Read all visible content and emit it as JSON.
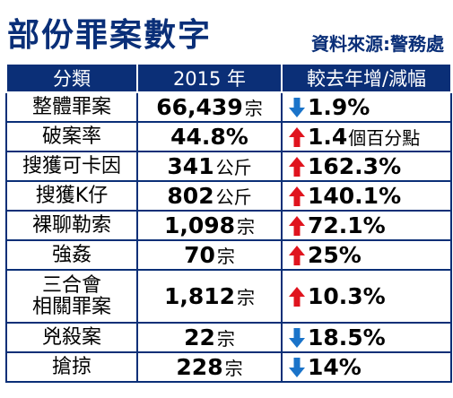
{
  "header": {
    "title": "部份罪案數字",
    "source": "資料來源:警務處"
  },
  "table": {
    "headers": [
      "分類",
      "2015 年",
      "較去年增/減幅"
    ],
    "colors": {
      "up": "#e0141e",
      "down": "#1a73c9",
      "header_bg": "#0b2f77"
    },
    "rows": [
      {
        "category": [
          "整體罪案"
        ],
        "value": "66,439",
        "unit": "宗",
        "direction": "down",
        "change": "1.9%",
        "note": ""
      },
      {
        "category": [
          "破案率"
        ],
        "value": "44.8%",
        "unit": "",
        "direction": "up",
        "change": "1.4",
        "note": "個百分點"
      },
      {
        "category": [
          "搜獲可卡因"
        ],
        "value": "341",
        "unit": "公斤",
        "direction": "up",
        "change": "162.3%",
        "note": ""
      },
      {
        "category": [
          "搜獲K仔"
        ],
        "value": "802",
        "unit": "公斤",
        "direction": "up",
        "change": "140.1%",
        "note": ""
      },
      {
        "category": [
          "裸聊勒索"
        ],
        "value": "1,098",
        "unit": "宗",
        "direction": "up",
        "change": "72.1%",
        "note": ""
      },
      {
        "category": [
          "強姦"
        ],
        "value": "70",
        "unit": "宗",
        "direction": "up",
        "change": "25%",
        "note": ""
      },
      {
        "category": [
          "三合會",
          "相關罪案"
        ],
        "value": "1,812",
        "unit": "宗",
        "direction": "up",
        "change": "10.3%",
        "note": ""
      },
      {
        "category": [
          "兇殺案"
        ],
        "value": "22",
        "unit": "宗",
        "direction": "down",
        "change": "18.5%",
        "note": ""
      },
      {
        "category": [
          "搶掠"
        ],
        "value": "228",
        "unit": "宗",
        "direction": "down",
        "change": "14%",
        "note": ""
      }
    ]
  }
}
